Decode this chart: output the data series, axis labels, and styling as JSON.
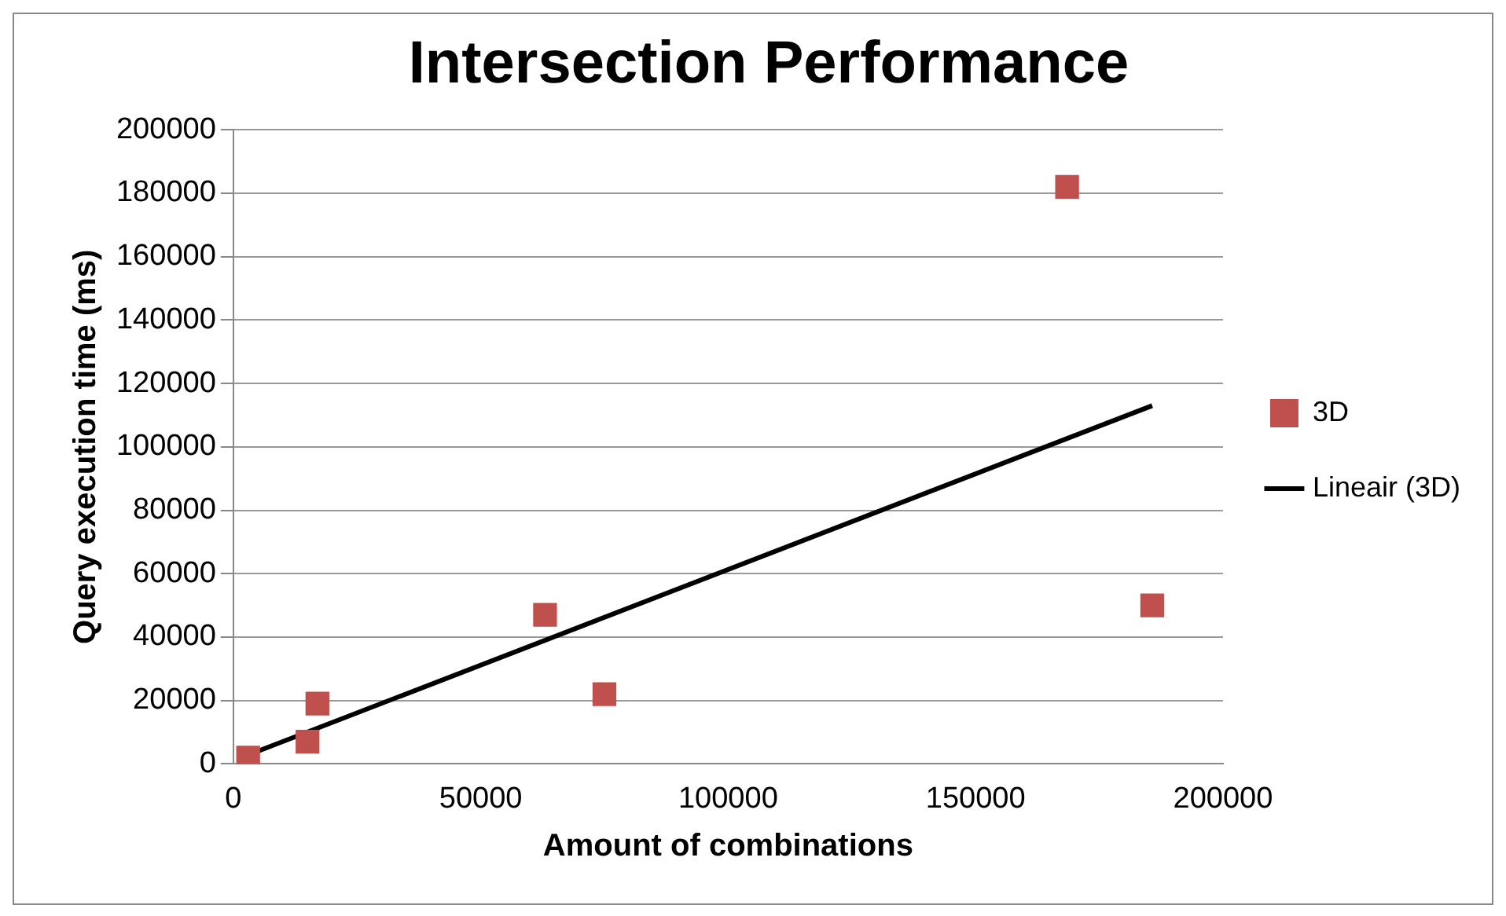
{
  "chart_data": {
    "type": "scatter",
    "title": "Intersection Performance",
    "xlabel": "Amount of combinations",
    "ylabel": "Query execution time (ms)",
    "series": [
      {
        "name": "3D",
        "color": "#c0504d",
        "marker": "square",
        "x": [
          3000,
          15000,
          17000,
          63000,
          75000,
          168500,
          185700
        ],
        "values": [
          2000,
          7000,
          19000,
          47000,
          22000,
          182000,
          50000
        ]
      },
      {
        "name": "Lineair (3D)",
        "type": "line",
        "marker": "none",
        "color": "#000000",
        "x": [
          3300,
          185700
        ],
        "values": [
          3000,
          113000
        ]
      }
    ],
    "xlim": [
      0,
      200000
    ],
    "xticks": [
      0,
      50000,
      100000,
      150000,
      200000
    ],
    "ylim": [
      0,
      200000
    ],
    "yticks": [
      0,
      20000,
      40000,
      60000,
      80000,
      100000,
      120000,
      140000,
      160000,
      180000,
      200000
    ],
    "grid": "y",
    "legend": "right"
  }
}
